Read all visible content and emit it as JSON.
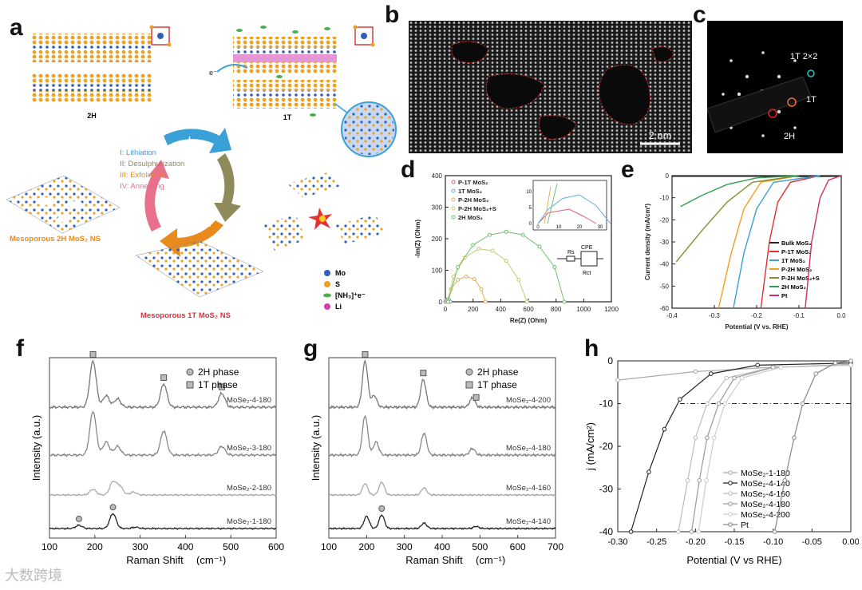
{
  "labels": {
    "a": "a",
    "b": "b",
    "c": "c",
    "d": "d",
    "e": "e",
    "f": "f",
    "g": "g",
    "h": "h"
  },
  "panel_a": {
    "s2H": "2H",
    "s1T": "1T",
    "electron": "e⁻",
    "steps": [
      {
        "numeral": "I",
        "text": "I: Lithiation",
        "color": "#3aa0d8"
      },
      {
        "numeral": "II",
        "text": "II: Desulphurization",
        "color": "#8e8a5a"
      },
      {
        "numeral": "III",
        "text": "III: Exfoliation",
        "color": "#e88a1c"
      },
      {
        "numeral": "IV",
        "text": "IV: Annealing",
        "color": "#e9708a"
      }
    ],
    "meso2H": "Mesoporous 2H MoS₂ NS",
    "meso1T": "Mesoporous 1T MoS₂ NS",
    "legend": [
      {
        "text": "Mo",
        "color": "#2f5fb8"
      },
      {
        "text": "S",
        "color": "#f0a020"
      },
      {
        "text": "[NH₃]⁺e⁻",
        "color": "#4caf50"
      },
      {
        "text": "Li",
        "color": "#d040b0"
      }
    ],
    "colors": {
      "mo": "#2f5fb8",
      "s": "#f0a020",
      "li": "#d040b0",
      "nh3": "#4caf50"
    }
  },
  "panel_b": {
    "scalebar": "2 nm"
  },
  "panel_c": {
    "l1": "1T 2×2",
    "l2": "1T",
    "l3": "2H"
  },
  "chart_data": [
    {
      "id": "d",
      "type": "scatter",
      "xlabel": "Re(Z) (Ohm)",
      "ylabel": "-Im(Z) (Ohm)",
      "xlim": [
        0,
        1200
      ],
      "ylim": [
        0,
        400
      ],
      "xticks": [
        0,
        200,
        400,
        600,
        800,
        1000,
        1200
      ],
      "yticks": [
        0,
        100,
        200,
        300,
        400
      ],
      "legend": "top-left",
      "series": [
        {
          "name": "P-1T MoS₂",
          "color": "#e06070",
          "values": [
            [
              0,
              0
            ],
            [
              5,
              3
            ],
            [
              15,
              4
            ],
            [
              22,
              2
            ],
            [
              28,
              0
            ]
          ]
        },
        {
          "name": "1T MoS₂",
          "color": "#60b0d8",
          "values": [
            [
              0,
              0
            ],
            [
              5,
              4
            ],
            [
              12,
              7
            ],
            [
              20,
              8
            ],
            [
              28,
              5
            ],
            [
              35,
              0
            ]
          ]
        },
        {
          "name": "P-2H MoS₂",
          "color": "#e0b060",
          "values": [
            [
              10,
              0
            ],
            [
              40,
              40
            ],
            [
              90,
              70
            ],
            [
              150,
              80
            ],
            [
              210,
              72
            ],
            [
              260,
              40
            ],
            [
              290,
              0
            ]
          ]
        },
        {
          "name": "P-2H MoS₂+S",
          "color": "#c8c870",
          "values": [
            [
              15,
              0
            ],
            [
              60,
              80
            ],
            [
              140,
              140
            ],
            [
              240,
              168
            ],
            [
              340,
              162
            ],
            [
              440,
              130
            ],
            [
              530,
              70
            ],
            [
              590,
              0
            ]
          ]
        },
        {
          "name": "2H MoS₂",
          "color": "#70c070",
          "values": [
            [
              20,
              0
            ],
            [
              90,
              110
            ],
            [
              200,
              180
            ],
            [
              320,
              212
            ],
            [
              440,
              222
            ],
            [
              560,
              212
            ],
            [
              680,
              175
            ],
            [
              790,
              110
            ],
            [
              860,
              0
            ]
          ]
        }
      ],
      "inset": {
        "xticks": [
          0,
          10,
          20,
          30
        ],
        "yticks": [
          0,
          5,
          10
        ],
        "circuit": {
          "rs": "Rs",
          "cpe": "CPE",
          "rct": "Rct"
        }
      }
    },
    {
      "id": "e",
      "type": "line",
      "xlabel": "Potential (V vs. RHE)",
      "ylabel": "Current density (mA/cm²)",
      "xlim": [
        -0.4,
        0.0
      ],
      "ylim": [
        -60,
        0
      ],
      "xticks": [
        -0.4,
        -0.3,
        -0.2,
        -0.1,
        0.0
      ],
      "yticks": [
        0,
        -10,
        -20,
        -30,
        -40,
        -50,
        -60
      ],
      "legend": "bottom-right",
      "series": [
        {
          "name": "Bulk MoS₂",
          "color": "#222",
          "values": [
            [
              -0.4,
              -0.3
            ],
            [
              -0.2,
              -0.3
            ],
            [
              -0.1,
              -0.4
            ],
            [
              0,
              -0.3
            ]
          ]
        },
        {
          "name": "P-1T MoS₂",
          "color": "#e03030",
          "values": [
            [
              -0.19,
              -60
            ],
            [
              -0.17,
              -30
            ],
            [
              -0.15,
              -12
            ],
            [
              -0.12,
              -3
            ],
            [
              -0.05,
              0
            ]
          ]
        },
        {
          "name": "1T MoS₂",
          "color": "#3aa0d8",
          "values": [
            [
              -0.255,
              -60
            ],
            [
              -0.23,
              -35
            ],
            [
              -0.2,
              -15
            ],
            [
              -0.16,
              -3
            ],
            [
              -0.05,
              0
            ]
          ]
        },
        {
          "name": "P-2H MoS₂",
          "color": "#f0a020",
          "values": [
            [
              -0.29,
              -60
            ],
            [
              -0.26,
              -35
            ],
            [
              -0.23,
              -15
            ],
            [
              -0.19,
              -3
            ],
            [
              -0.1,
              0
            ]
          ]
        },
        {
          "name": "P-2H MoS₂+S",
          "color": "#8a8a30",
          "values": [
            [
              -0.39,
              -39
            ],
            [
              -0.33,
              -25
            ],
            [
              -0.27,
              -12
            ],
            [
              -0.21,
              -3
            ],
            [
              -0.1,
              0
            ]
          ]
        },
        {
          "name": "2H MoS₂",
          "color": "#30a050",
          "values": [
            [
              -0.38,
              -14
            ],
            [
              -0.33,
              -9
            ],
            [
              -0.27,
              -4
            ],
            [
              -0.2,
              -1
            ],
            [
              -0.1,
              0
            ]
          ]
        },
        {
          "name": "Pt",
          "color": "#d03060",
          "values": [
            [
              -0.085,
              -60
            ],
            [
              -0.07,
              -30
            ],
            [
              -0.05,
              -10
            ],
            [
              -0.03,
              -2
            ],
            [
              0,
              0
            ]
          ]
        }
      ]
    },
    {
      "id": "f",
      "type": "line",
      "xlabel": "Raman Shift",
      "xunit": "(cm⁻¹)",
      "ylabel": "Intensity (a.u.)",
      "xlim": [
        100,
        600
      ],
      "xticks": [
        100,
        200,
        300,
        400,
        500,
        600
      ],
      "legend": "top-right",
      "legend_items": [
        {
          "text": "2H phase",
          "shape": "circle"
        },
        {
          "text": "1T phase",
          "shape": "square"
        }
      ],
      "series": [
        {
          "name": "MoSe₂-4-180",
          "color": "#777",
          "offset": 0,
          "peaks": [
            [
              196,
              1.0
            ],
            [
              225,
              0.25
            ],
            [
              250,
              0.18
            ],
            [
              352,
              0.5
            ],
            [
              480,
              0.3
            ]
          ]
        },
        {
          "name": "MoSe₂-3-180",
          "color": "#888",
          "offset": 1,
          "peaks": [
            [
              196,
              1.0
            ],
            [
              225,
              0.3
            ],
            [
              250,
              0.2
            ],
            [
              352,
              0.55
            ],
            [
              480,
              0.2
            ]
          ]
        },
        {
          "name": "MoSe₂-2-180",
          "color": "#aaa",
          "offset": 2,
          "peaks": [
            [
              196,
              0.2
            ],
            [
              240,
              0.45
            ],
            [
              255,
              0.3
            ],
            [
              285,
              0.1
            ]
          ]
        },
        {
          "name": "MoSe₂-1-180",
          "color": "#222",
          "offset": 3,
          "peaks": [
            [
              165,
              0.12
            ],
            [
              240,
              0.55
            ],
            [
              290,
              0.05
            ]
          ]
        }
      ],
      "markers": [
        {
          "x": 196,
          "offset": 0,
          "shape": "square"
        },
        {
          "x": 352,
          "offset": 0,
          "shape": "square"
        },
        {
          "x": 480,
          "offset": 0,
          "shape": "square"
        },
        {
          "x": 165,
          "offset": 3,
          "shape": "circle"
        },
        {
          "x": 240,
          "offset": 3,
          "shape": "circle"
        }
      ]
    },
    {
      "id": "g",
      "type": "line",
      "xlabel": "Raman Shift",
      "xunit": "(cm⁻¹)",
      "ylabel": "Intensity (a.u.)",
      "xlim": [
        100,
        700
      ],
      "xticks": [
        100,
        200,
        300,
        400,
        500,
        600,
        700
      ],
      "legend": "top-right",
      "legend_items": [
        {
          "text": "2H phase",
          "shape": "circle"
        },
        {
          "text": "1T phase",
          "shape": "square"
        }
      ],
      "series": [
        {
          "name": "MoSe₂-4-200",
          "color": "#777",
          "offset": 0,
          "peaks": [
            [
              196,
              1.0
            ],
            [
              220,
              0.25
            ],
            [
              350,
              0.6
            ],
            [
              480,
              0.2
            ]
          ]
        },
        {
          "name": "MoSe₂-4-180",
          "color": "#888",
          "offset": 1,
          "peaks": [
            [
              196,
              0.9
            ],
            [
              225,
              0.3
            ],
            [
              352,
              0.5
            ],
            [
              480,
              0.15
            ]
          ]
        },
        {
          "name": "MoSe₂-4-160",
          "color": "#aaa",
          "offset": 2,
          "peaks": [
            [
              196,
              0.4
            ],
            [
              240,
              0.45
            ],
            [
              352,
              0.25
            ]
          ]
        },
        {
          "name": "MoSe₂-4-140",
          "color": "#222",
          "offset": 3,
          "peaks": [
            [
              200,
              0.45
            ],
            [
              240,
              0.5
            ],
            [
              352,
              0.2
            ],
            [
              490,
              0.08
            ]
          ]
        }
      ],
      "markers": [
        {
          "x": 196,
          "offset": 0,
          "shape": "square"
        },
        {
          "x": 350,
          "offset": 0,
          "shape": "square"
        },
        {
          "x": 490,
          "offset": 0,
          "shape": "square"
        },
        {
          "x": 240,
          "offset": 3,
          "shape": "circle"
        }
      ]
    },
    {
      "id": "h",
      "type": "line",
      "xlabel": "Potential (V vs RHE)",
      "ylabel": "j (mA/cm²)",
      "xlim": [
        -0.3,
        0.0
      ],
      "ylim": [
        -40,
        0
      ],
      "xticks": [
        -0.3,
        -0.25,
        -0.2,
        -0.15,
        -0.1,
        -0.05,
        0.0
      ],
      "yticks": [
        0,
        -10,
        -20,
        -30,
        -40
      ],
      "hline": -10,
      "legend": "bottom-left",
      "series": [
        {
          "name": "MoSe₂-1-180",
          "color": "#aaa",
          "values": [
            [
              -0.3,
              -4.5
            ],
            [
              -0.2,
              -2.5
            ],
            [
              -0.1,
              -1.5
            ],
            [
              0,
              -0.8
            ]
          ]
        },
        {
          "name": "MoSe₂-4-140",
          "color": "#222",
          "values": [
            [
              -0.283,
              -40
            ],
            [
              -0.26,
              -26
            ],
            [
              -0.24,
              -16
            ],
            [
              -0.22,
              -9
            ],
            [
              -0.18,
              -3
            ],
            [
              -0.12,
              -1
            ],
            [
              0,
              -0.5
            ]
          ]
        },
        {
          "name": "MoSe₂-4-160",
          "color": "#bbb",
          "values": [
            [
              -0.222,
              -40
            ],
            [
              -0.21,
              -28
            ],
            [
              -0.2,
              -18
            ],
            [
              -0.185,
              -10
            ],
            [
              -0.16,
              -4
            ],
            [
              -0.1,
              -1.5
            ],
            [
              0,
              -1
            ]
          ]
        },
        {
          "name": "MoSe₂-4-180",
          "color": "#999",
          "values": [
            [
              -0.205,
              -40
            ],
            [
              -0.195,
              -28
            ],
            [
              -0.185,
              -18
            ],
            [
              -0.17,
              -10
            ],
            [
              -0.15,
              -4
            ],
            [
              -0.1,
              -1.5
            ],
            [
              0,
              -1
            ]
          ]
        },
        {
          "name": "MoSe₂-4-200",
          "color": "#ccc",
          "values": [
            [
              -0.196,
              -40
            ],
            [
              -0.186,
              -28
            ],
            [
              -0.176,
              -18
            ],
            [
              -0.162,
              -10
            ],
            [
              -0.14,
              -4
            ],
            [
              -0.09,
              -1.5
            ],
            [
              0,
              -1
            ]
          ]
        },
        {
          "name": "Pt",
          "color": "#888",
          "values": [
            [
              -0.098,
              -40
            ],
            [
              -0.085,
              -28
            ],
            [
              -0.073,
              -18
            ],
            [
              -0.062,
              -10
            ],
            [
              -0.045,
              -3
            ],
            [
              -0.02,
              -0.5
            ],
            [
              0,
              0
            ]
          ]
        }
      ]
    }
  ],
  "watermark": "大数跨境"
}
